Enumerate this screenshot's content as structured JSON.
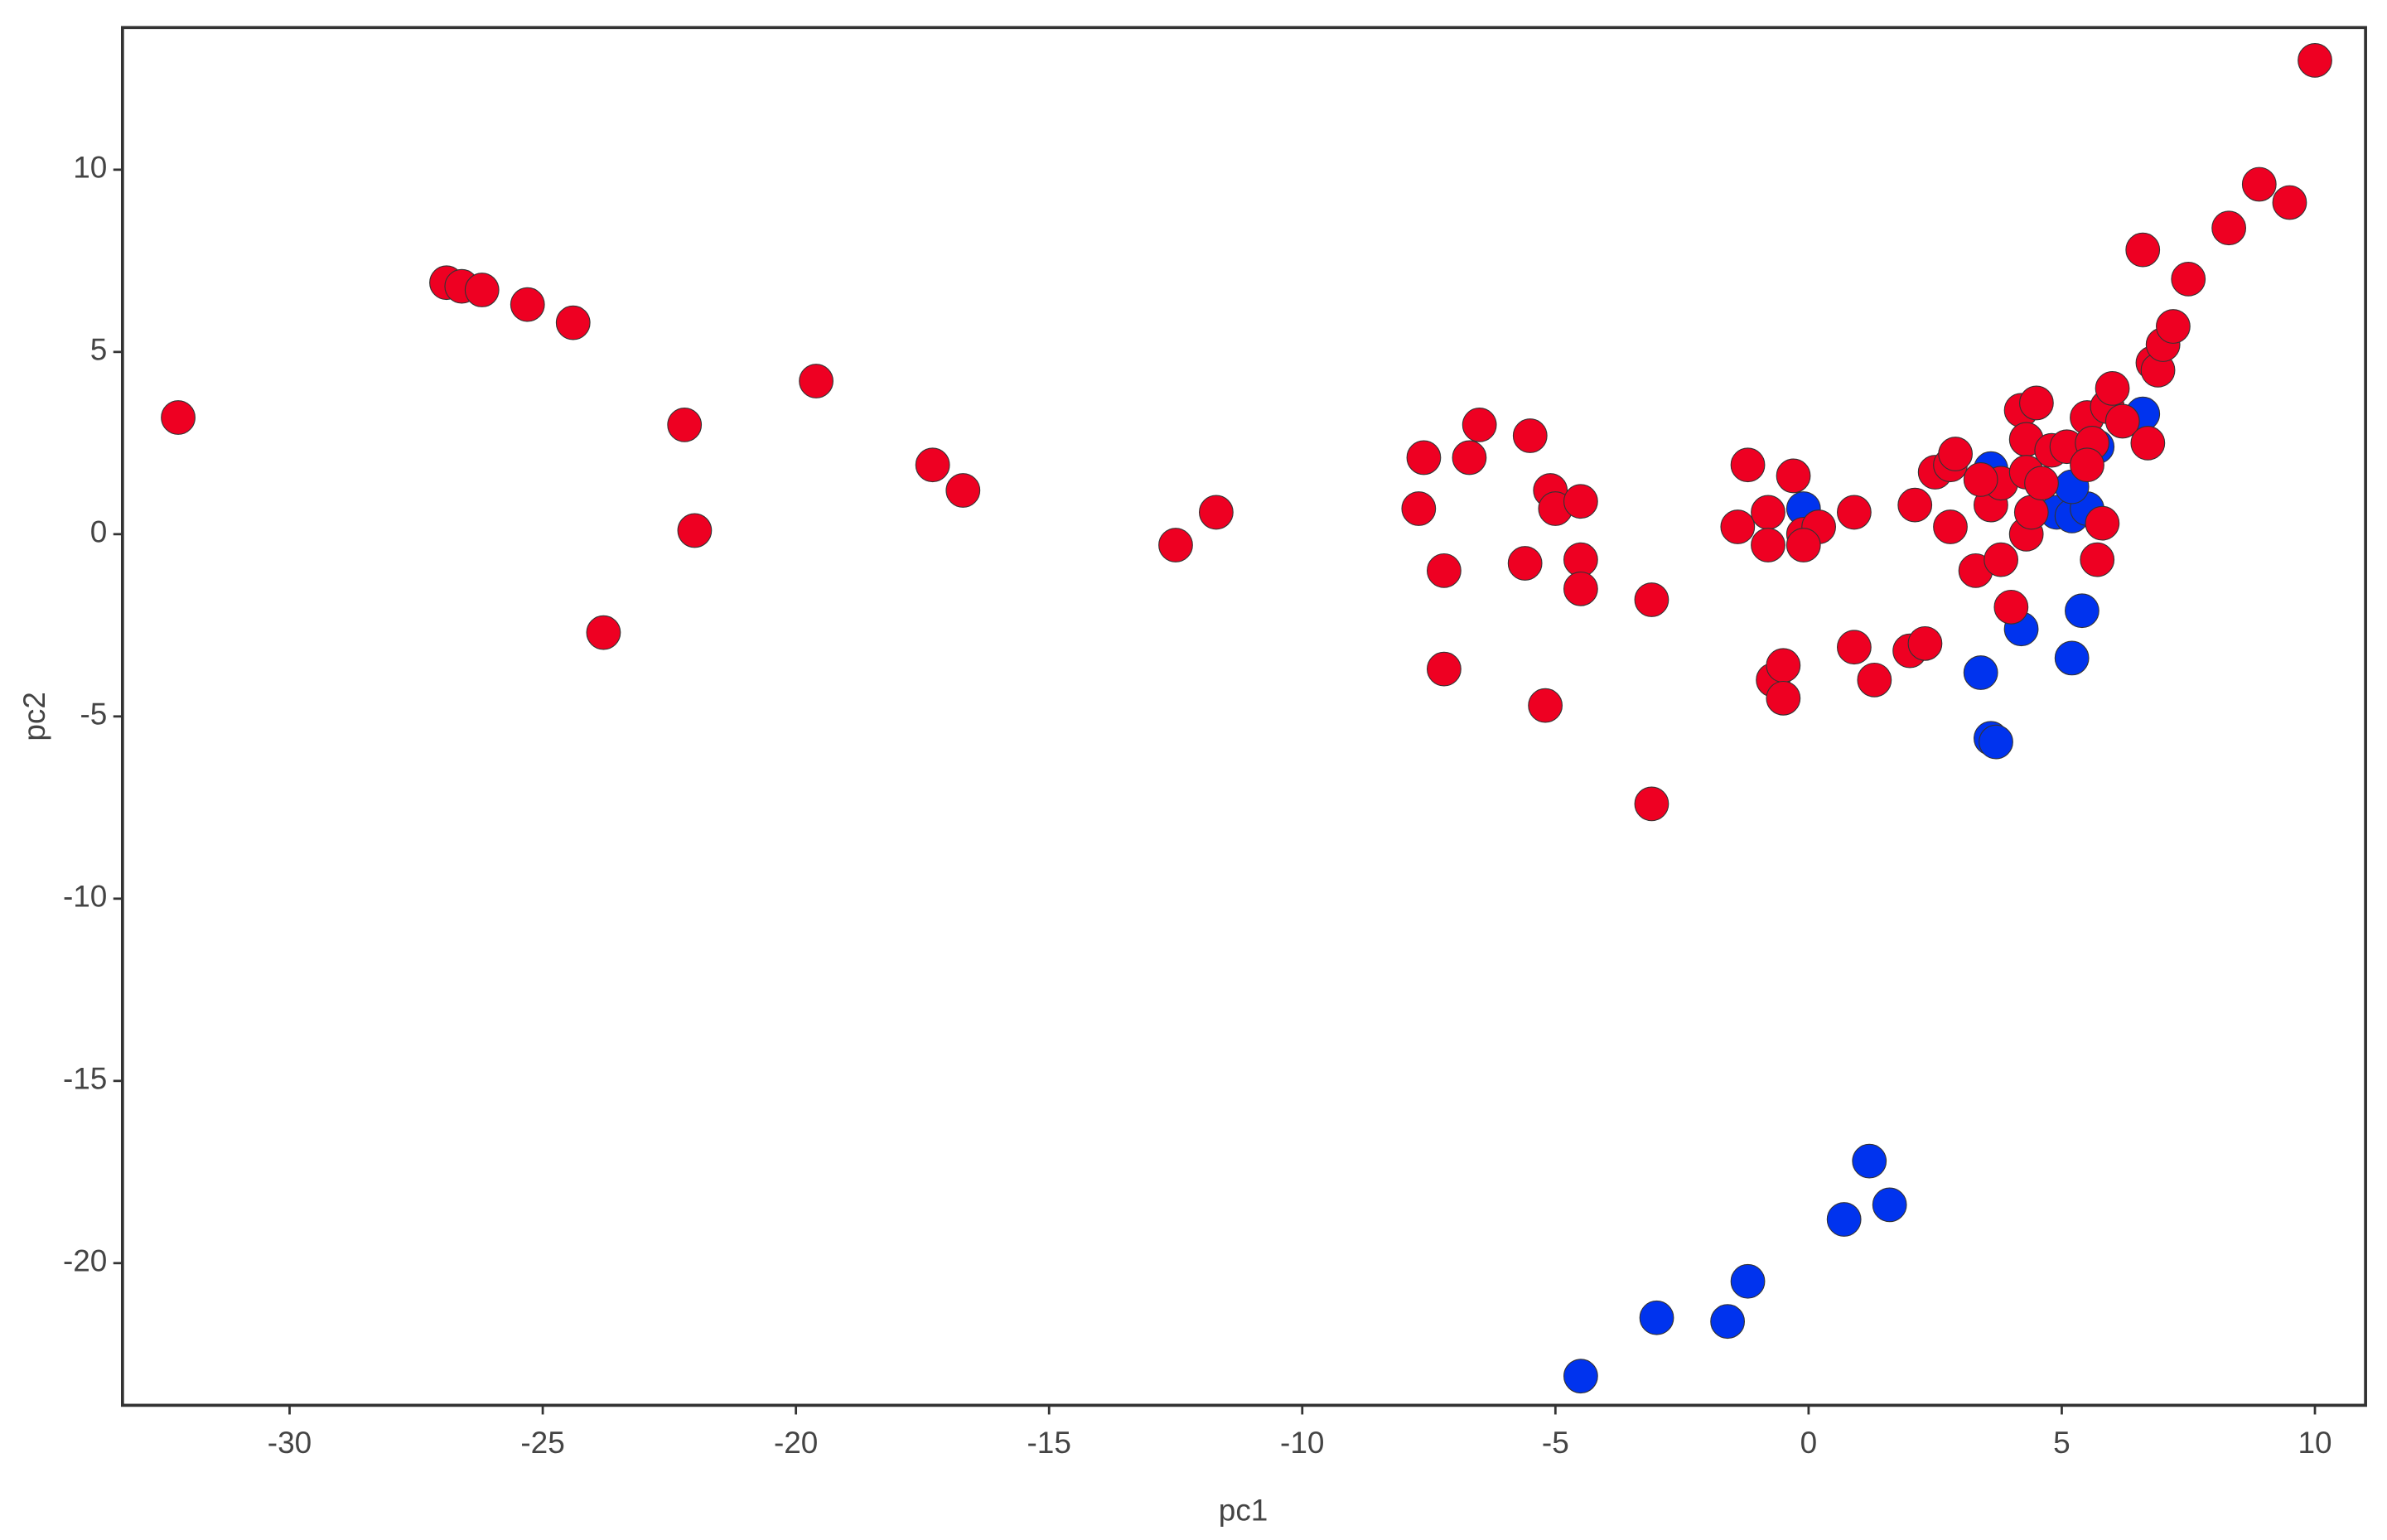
{
  "chart_data": {
    "type": "scatter",
    "x_label": "pc1",
    "y_label": "pc2",
    "xlim": [
      -33.3,
      11.0
    ],
    "ylim": [
      -23.9,
      13.9
    ],
    "xticks": [
      -30,
      -25,
      -20,
      -15,
      -10,
      -5,
      0,
      5,
      10
    ],
    "yticks": [
      -20,
      -15,
      -10,
      -5,
      0,
      5,
      10
    ],
    "grid": false,
    "series": [
      {
        "color": "#0033ee",
        "x": [
          -4.5,
          -3.0,
          -1.6,
          -1.2,
          0.7,
          1.2,
          1.6,
          3.4,
          3.6,
          3.7,
          4.2,
          5.2,
          5.4,
          4.9,
          5.2,
          5.5,
          5.7,
          6.6,
          -0.1,
          3.6,
          5.2
        ],
        "y": [
          -23.1,
          -21.5,
          -21.6,
          -20.5,
          -18.8,
          -17.2,
          -18.4,
          -3.8,
          -5.6,
          -5.7,
          -2.6,
          -3.4,
          -2.1,
          0.6,
          0.5,
          0.7,
          2.4,
          3.3,
          0.7,
          1.8,
          1.3
        ]
      },
      {
        "color": "#ee0022",
        "x": [
          -32.2,
          -26.9,
          -26.6,
          -26.2,
          -25.3,
          -24.4,
          -22.2,
          -22.0,
          -23.8,
          -19.6,
          -17.3,
          -16.7,
          -12.5,
          -11.7,
          -7.7,
          -7.6,
          -7.2,
          -7.2,
          -6.7,
          -6.5,
          -5.5,
          -5.1,
          -5.0,
          -4.5,
          -5.6,
          -4.5,
          -4.5,
          -5.2,
          -3.1,
          -3.1,
          -1.4,
          -1.2,
          -0.8,
          -0.8,
          -0.3,
          -0.1,
          0.2,
          -0.1,
          -0.7,
          -0.5,
          -0.5,
          0.9,
          0.9,
          1.3,
          2.0,
          2.3,
          2.1,
          2.8,
          2.5,
          2.8,
          2.9,
          3.3,
          3.8,
          4.0,
          3.6,
          3.8,
          3.4,
          4.2,
          4.5,
          4.3,
          4.3,
          4.3,
          4.4,
          4.8,
          5.1,
          4.6,
          5.5,
          5.6,
          5.5,
          5.8,
          5.7,
          5.9,
          6.0,
          6.2,
          6.6,
          6.7,
          6.8,
          6.9,
          7.0,
          7.2,
          7.5,
          8.3,
          8.9,
          9.5,
          10.0
        ],
        "y": [
          3.2,
          6.9,
          6.8,
          6.7,
          6.3,
          5.8,
          3.0,
          0.1,
          -2.7,
          4.2,
          1.9,
          1.2,
          -0.3,
          0.6,
          0.7,
          2.1,
          -1.0,
          -3.7,
          2.1,
          3.0,
          2.7,
          1.2,
          0.7,
          0.9,
          -0.8,
          -0.7,
          -1.5,
          -4.7,
          -1.8,
          -7.4,
          0.2,
          1.9,
          0.6,
          -0.3,
          1.6,
          0.0,
          0.2,
          -0.3,
          -4.0,
          -3.6,
          -4.5,
          0.6,
          -3.1,
          -4.0,
          -3.2,
          -3.0,
          0.8,
          0.2,
          1.7,
          1.9,
          2.2,
          -1.0,
          -0.7,
          -2.0,
          0.8,
          1.4,
          1.5,
          3.4,
          3.6,
          2.6,
          1.7,
          0.0,
          0.6,
          2.3,
          2.4,
          1.4,
          3.2,
          2.5,
          1.9,
          0.3,
          -0.7,
          3.5,
          4.0,
          3.1,
          7.8,
          2.5,
          4.7,
          4.5,
          5.2,
          5.7,
          7.0,
          8.4,
          9.6,
          9.1,
          13.0
        ]
      }
    ]
  }
}
